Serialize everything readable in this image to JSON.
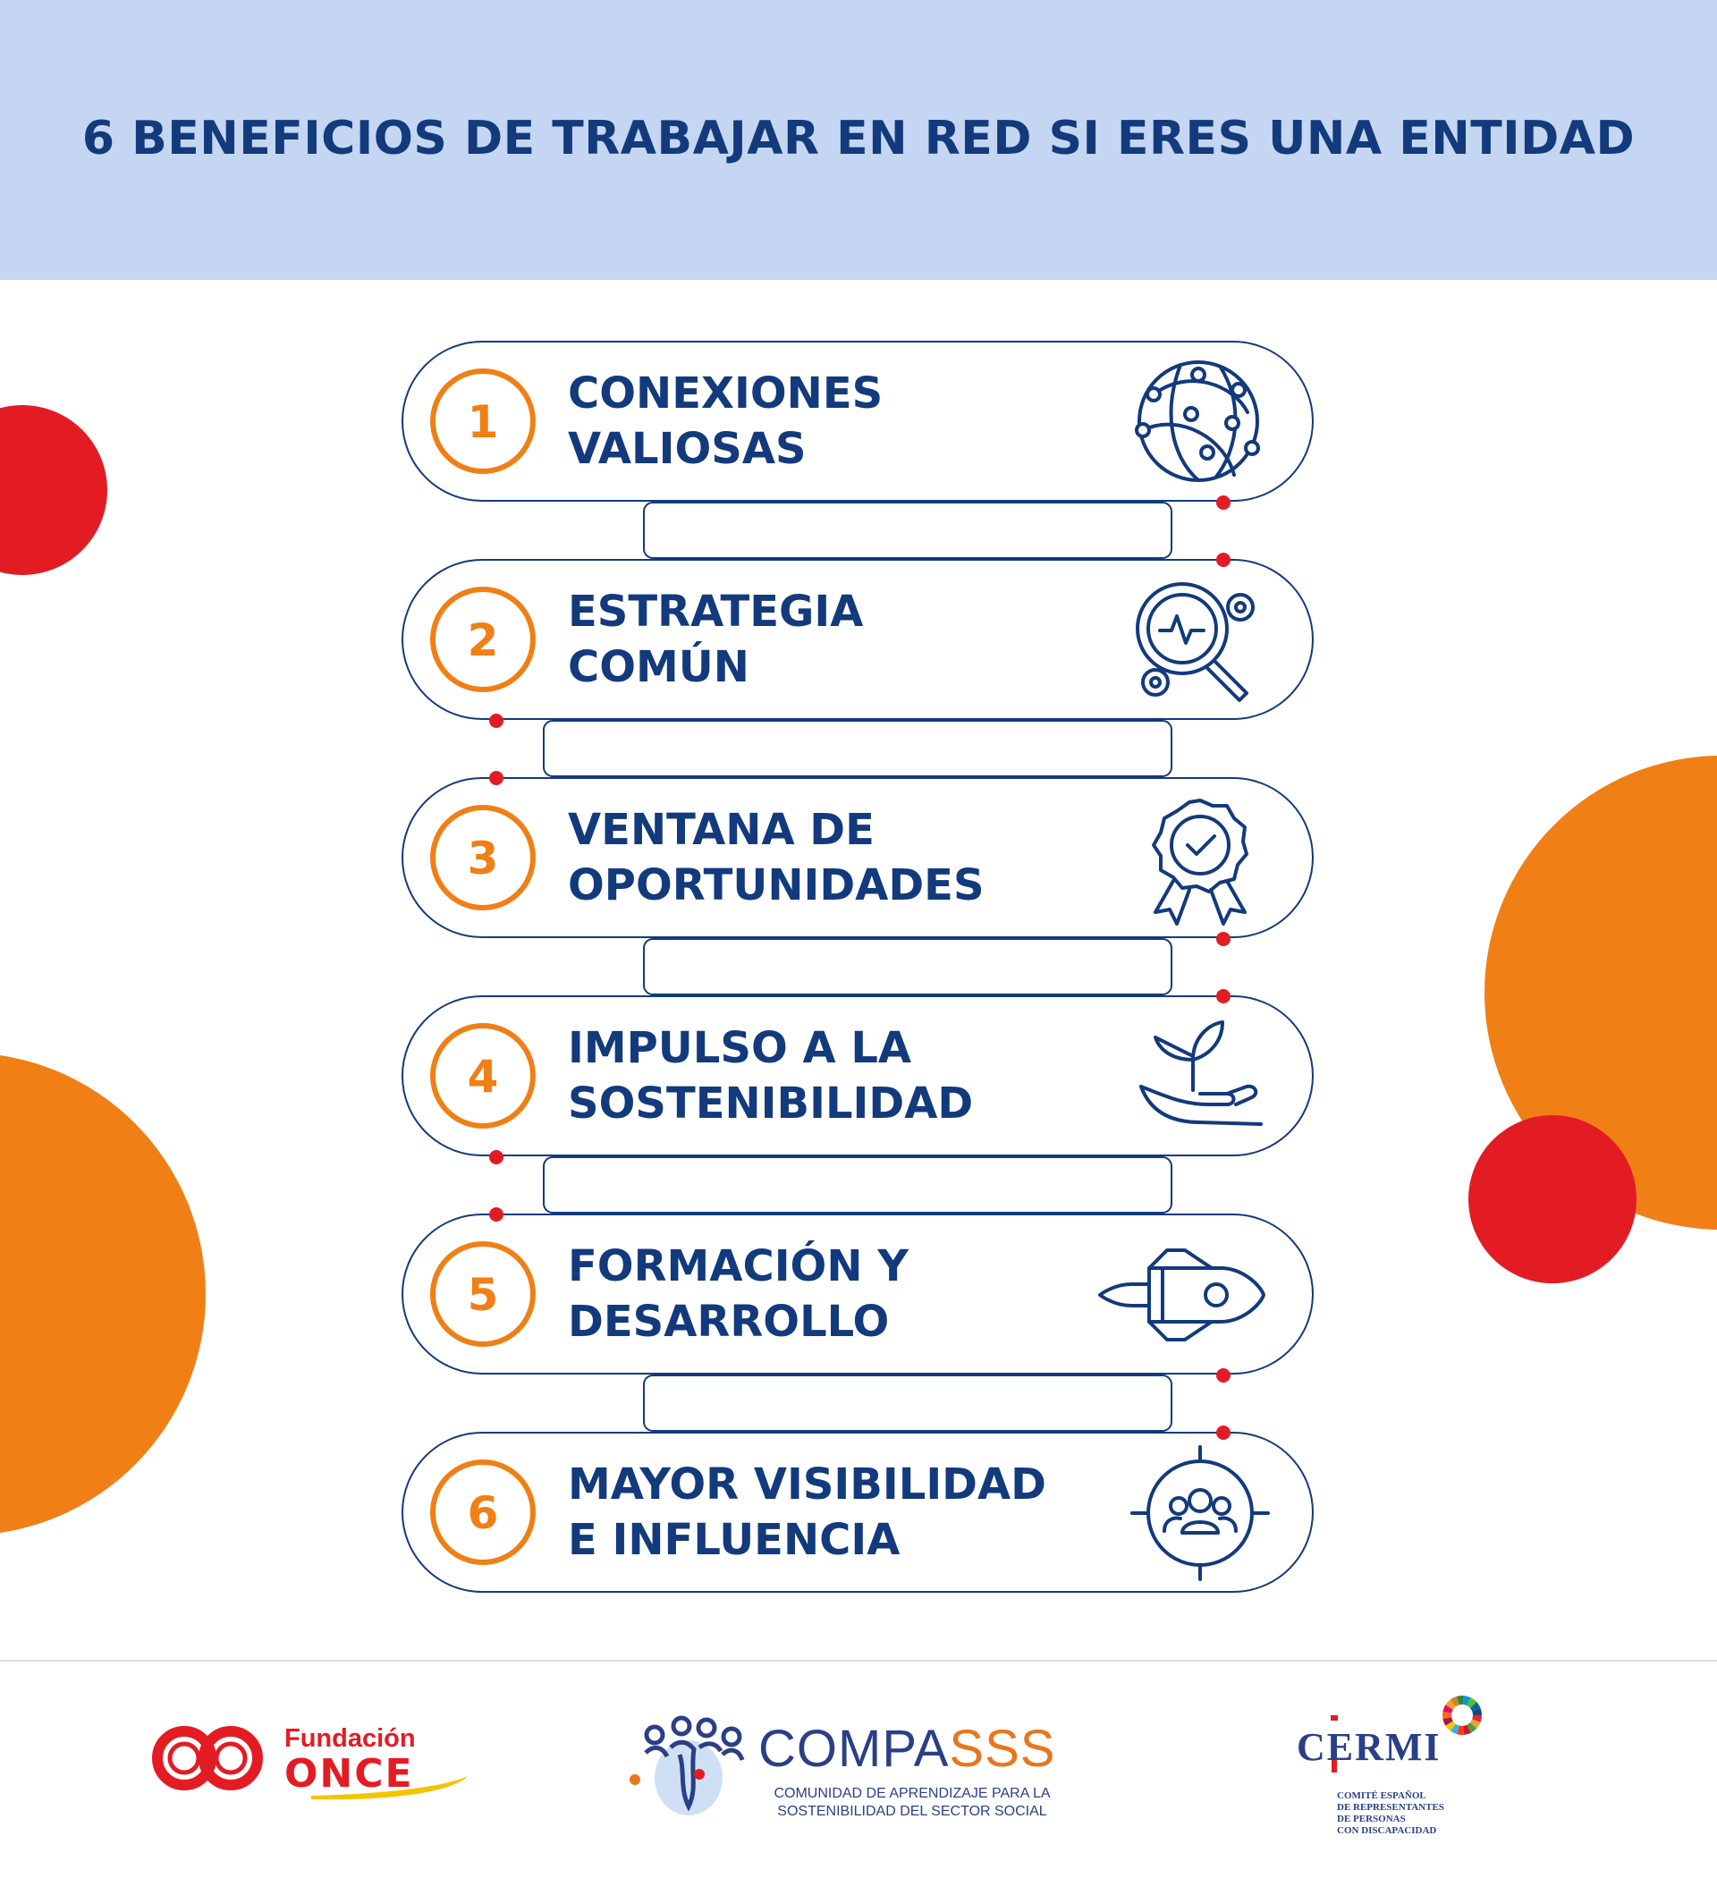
{
  "header": {
    "title": "6 BENEFICIOS DE TRABAJAR EN RED SI ERES UNA ENTIDAD"
  },
  "colors": {
    "header_bg": "#c4d6f1",
    "navy": "#123a7c",
    "orange": "#f07f16",
    "red": "#e31c24"
  },
  "steps": [
    {
      "number": "1",
      "line1": "CONEXIONES",
      "line2": "VALIOSAS",
      "icon": "globe-network-icon"
    },
    {
      "number": "2",
      "line1": "ESTRATEGIA",
      "line2": "COMÚN",
      "icon": "magnifier-gears-icon"
    },
    {
      "number": "3",
      "line1": "VENTANA DE",
      "line2": "OPORTUNIDADES",
      "icon": "award-badge-icon"
    },
    {
      "number": "4",
      "line1": "IMPULSO A LA",
      "line2": "SOSTENIBILIDAD",
      "icon": "hand-plant-icon"
    },
    {
      "number": "5",
      "line1": "FORMACIÓN Y",
      "line2": "DESARROLLO",
      "icon": "rocket-icon"
    },
    {
      "number": "6",
      "line1": "MAYOR VISIBILIDAD",
      "line2": "E INFLUENCIA",
      "icon": "target-audience-icon"
    }
  ],
  "footer": {
    "once": {
      "line1": "Fundación",
      "line2": "ONCE"
    },
    "compasss": {
      "name_main": "COMPA",
      "name_accent": "SSS",
      "subtitle_line1": "COMUNIDAD DE APRENDIZAJE PARA LA",
      "subtitle_line2": "SOSTENIBILIDAD DEL SECTOR SOCIAL"
    },
    "cermi": {
      "name": "CERMI",
      "sub": [
        "COMITÉ ESPAÑOL",
        "DE REPRESENTANTES",
        "DE PERSONAS",
        "CON DISCAPACIDAD"
      ]
    }
  }
}
